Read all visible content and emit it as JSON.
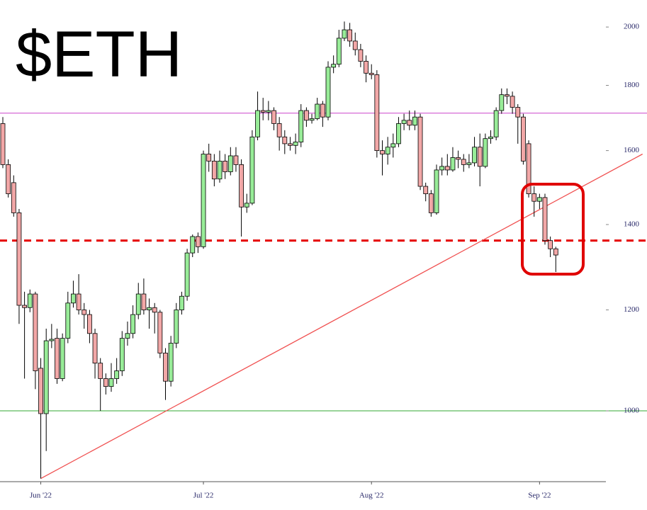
{
  "chart_data": {
    "type": "candlestick",
    "title": "$ETH",
    "categories": [
      null,
      null,
      null,
      null,
      null,
      null,
      null,
      "Jun '22",
      null,
      null,
      null,
      null,
      null,
      null,
      null,
      null,
      null,
      null,
      null,
      null,
      null,
      null,
      null,
      null,
      null,
      null,
      null,
      null,
      null,
      null,
      null,
      null,
      null,
      null,
      null,
      null,
      null,
      "Jul '22",
      null,
      null,
      null,
      null,
      null,
      null,
      null,
      null,
      null,
      null,
      null,
      null,
      null,
      null,
      null,
      null,
      null,
      null,
      null,
      null,
      null,
      null,
      null,
      null,
      null,
      null,
      null,
      null,
      null,
      null,
      "Aug '22",
      null,
      null,
      null,
      null,
      null,
      null,
      null,
      null,
      null,
      null,
      null,
      null,
      null,
      null,
      null,
      null,
      null,
      null,
      null,
      null,
      null,
      null,
      null,
      null,
      null,
      null,
      null,
      null,
      null,
      null,
      "Sep '22",
      null,
      null,
      null
    ],
    "open": [
      1680,
      1560,
      1510,
      1430,
      1210,
      1205,
      1235,
      1080,
      995,
      1135,
      1140,
      1060,
      1140,
      1215,
      1235,
      1200,
      1190,
      1150,
      1090,
      1060,
      1045,
      1060,
      1075,
      1140,
      1150,
      1190,
      1235,
      1200,
      1205,
      1195,
      1110,
      1055,
      1130,
      1200,
      1230,
      1330,
      1370,
      1345,
      1590,
      1570,
      1520,
      1570,
      1540,
      1585,
      1560,
      1445,
      1455,
      1640,
      1720,
      1715,
      1720,
      1680,
      1640,
      1620,
      1615,
      1625,
      1720,
      1690,
      1695,
      1740,
      1700,
      1860,
      1870,
      1960,
      1990,
      1950,
      1920,
      1880,
      1840,
      1835,
      1600,
      1590,
      1610,
      1620,
      1680,
      1690,
      1675,
      1700,
      1500,
      1480,
      1430,
      1545,
      1555,
      1545,
      1580,
      1575,
      1560,
      1565,
      1610,
      1555,
      1635,
      1640,
      1720,
      1770,
      1765,
      1730,
      1700,
      1620,
      1480,
      1460,
      1470,
      1360,
      1340
    ],
    "high": [
      1700,
      1575,
      1530,
      1440,
      1240,
      1245,
      1240,
      1100,
      1160,
      1170,
      1160,
      1150,
      1240,
      1265,
      1280,
      1215,
      1200,
      1160,
      1100,
      1070,
      1090,
      1100,
      1155,
      1175,
      1210,
      1260,
      1270,
      1225,
      1215,
      1200,
      1120,
      1145,
      1215,
      1240,
      1340,
      1375,
      1380,
      1600,
      1620,
      1590,
      1600,
      1590,
      1610,
      1610,
      1575,
      1480,
      1660,
      1780,
      1760,
      1750,
      1730,
      1700,
      1660,
      1640,
      1650,
      1740,
      1730,
      1710,
      1760,
      1750,
      1880,
      1900,
      1990,
      2020,
      2015,
      1980,
      1940,
      1900,
      1870,
      1850,
      1630,
      1640,
      1650,
      1700,
      1710,
      1720,
      1720,
      1710,
      1510,
      1490,
      1560,
      1580,
      1590,
      1610,
      1600,
      1590,
      1590,
      1640,
      1650,
      1650,
      1660,
      1730,
      1790,
      1790,
      1780,
      1740,
      1710,
      1630,
      1500,
      1480,
      1480,
      1370,
      1345
    ],
    "low": [
      1550,
      1470,
      1420,
      1170,
      1060,
      1195,
      1040,
      885,
      930,
      1120,
      1050,
      1055,
      1130,
      1205,
      1190,
      1160,
      1130,
      1060,
      1000,
      1030,
      1035,
      1050,
      1065,
      1125,
      1140,
      1180,
      1190,
      1160,
      1150,
      1100,
      1020,
      1045,
      1120,
      1190,
      1220,
      1320,
      1330,
      1340,
      1540,
      1500,
      1510,
      1520,
      1530,
      1540,
      1370,
      1430,
      1450,
      1630,
      1690,
      1690,
      1660,
      1600,
      1590,
      1600,
      1590,
      1610,
      1670,
      1680,
      1690,
      1670,
      1690,
      1840,
      1860,
      1950,
      1930,
      1900,
      1860,
      1810,
      1820,
      1580,
      1530,
      1560,
      1580,
      1610,
      1660,
      1660,
      1660,
      1490,
      1460,
      1420,
      1425,
      1530,
      1530,
      1540,
      1550,
      1540,
      1550,
      1555,
      1500,
      1550,
      1620,
      1630,
      1710,
      1740,
      1710,
      1620,
      1560,
      1470,
      1420,
      1440,
      1350,
      1320,
      1285
    ],
    "close": [
      1560,
      1480,
      1430,
      1210,
      1205,
      1235,
      1075,
      995,
      1135,
      1138,
      1060,
      1140,
      1215,
      1235,
      1200,
      1190,
      1150,
      1090,
      1060,
      1045,
      1060,
      1075,
      1140,
      1150,
      1190,
      1235,
      1200,
      1205,
      1195,
      1110,
      1055,
      1130,
      1200,
      1230,
      1330,
      1370,
      1345,
      1590,
      1570,
      1520,
      1570,
      1540,
      1585,
      1560,
      1445,
      1455,
      1640,
      1720,
      1715,
      1720,
      1680,
      1640,
      1620,
      1615,
      1625,
      1720,
      1690,
      1695,
      1740,
      1700,
      1860,
      1870,
      1960,
      1990,
      1950,
      1920,
      1880,
      1840,
      1835,
      1600,
      1590,
      1610,
      1620,
      1680,
      1690,
      1675,
      1700,
      1500,
      1480,
      1430,
      1545,
      1555,
      1545,
      1580,
      1575,
      1560,
      1565,
      1610,
      1555,
      1635,
      1640,
      1720,
      1770,
      1765,
      1730,
      1700,
      1570,
      1480,
      1460,
      1470,
      1360,
      1340,
      1325
    ],
    "up_color": "#98ec98",
    "down_color": "#f2a7a7",
    "log_scale": true,
    "ylim": [
      880,
      2100
    ],
    "yticks": [
      1000,
      1200,
      1400,
      1600,
      1800,
      2000
    ],
    "hlines": [
      {
        "value": 1712,
        "color": "#cc44cc",
        "style": "solid"
      },
      {
        "value": 1360,
        "color": "#e60000",
        "style": "dashed"
      },
      {
        "value": 1000,
        "color": "#33aa33",
        "style": "solid"
      }
    ],
    "trendline": {
      "start_index": 7,
      "start_value": 885,
      "end_index": 118,
      "end_value": 1590,
      "color": "#f05050"
    }
  }
}
